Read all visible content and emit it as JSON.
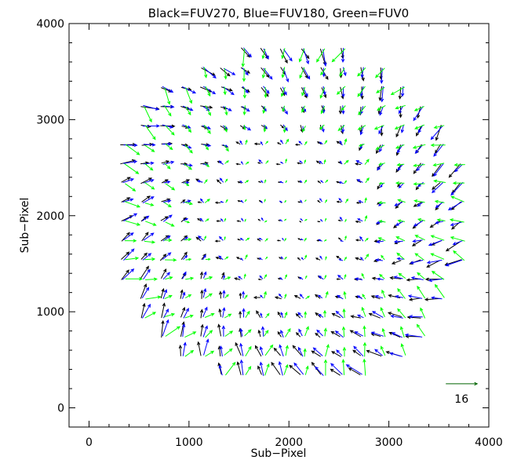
{
  "chart_data": {
    "type": "vector_field",
    "title": "Black=FUV270, Blue=FUV180, Green=FUV0",
    "xlabel": "Sub−Pixel",
    "ylabel": "Sub−Pixel",
    "xlim": [
      -200,
      4000
    ],
    "ylim": [
      -200,
      4000
    ],
    "x_ticks": [
      0,
      1000,
      2000,
      3000,
      4000
    ],
    "y_ticks": [
      0,
      1000,
      2000,
      3000,
      4000
    ],
    "x_tick_labels": [
      "0",
      "1000",
      "2000",
      "3000",
      "4000"
    ],
    "y_tick_labels": [
      "0",
      "1000",
      "2000",
      "3000",
      "4000"
    ],
    "grid": false,
    "series": [
      {
        "name": "FUV270",
        "color": "#000000"
      },
      {
        "name": "FUV180",
        "color": "#0000ff"
      },
      {
        "name": "FUV0",
        "color": "#00ff00"
      }
    ],
    "field": {
      "spacing": 200,
      "center": [
        2000,
        2000
      ],
      "radius": 1860,
      "arrow_scale": 6
    },
    "scale_arrow": {
      "x": 3570,
      "y": 250,
      "length": 16,
      "label": "16",
      "color": "#006400"
    }
  }
}
